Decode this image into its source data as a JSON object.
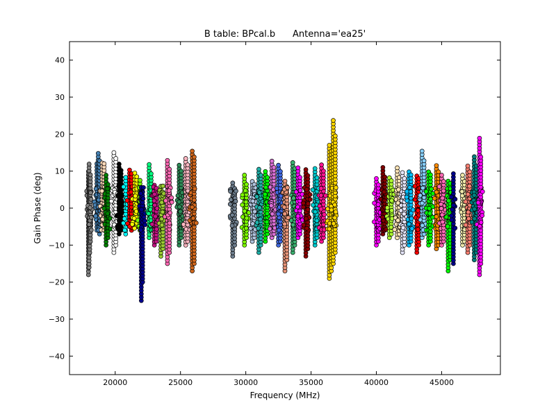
{
  "chart_data": {
    "type": "scatter",
    "title": "B table: BPcal.b      Antenna='ea25'",
    "xlabel": "Frequency (MHz)",
    "ylabel": "Gain Phase (deg)",
    "xlim": [
      16500,
      49500
    ],
    "ylim": [
      -45,
      45
    ],
    "x_ticks": [
      20000,
      25000,
      30000,
      35000,
      40000,
      45000
    ],
    "y_ticks": [
      40,
      30,
      20,
      10,
      0,
      -10,
      -20,
      -30,
      -40
    ],
    "x_tick_labels": [
      "20000",
      "25000",
      "30000",
      "35000",
      "40000",
      "45000"
    ],
    "y_tick_labels": [
      "40",
      "30",
      "20",
      "10",
      "0",
      "−10",
      "−20",
      "−30",
      "−40"
    ],
    "grid": false,
    "legend": "none",
    "marker": "circle",
    "series": [
      {
        "color": "#808080",
        "x": [
          17950,
          18000,
          18050,
          18100
        ],
        "ymin": [
          -18,
          -16,
          -12,
          -9
        ],
        "ymax": [
          10,
          12,
          8,
          9
        ]
      },
      {
        "color": "#4682b4",
        "x": [
          18600,
          18700,
          18800
        ],
        "ymin": [
          -6,
          -5,
          -7
        ],
        "ymax": [
          12,
          15,
          13
        ]
      },
      {
        "color": "#ffdab9",
        "x": [
          19000,
          19150
        ],
        "ymin": [
          -4,
          -6
        ],
        "ymax": [
          13,
          12
        ]
      },
      {
        "color": "#008000",
        "x": [
          19300,
          19450
        ],
        "ymin": [
          -10,
          -8
        ],
        "ymax": [
          9,
          7
        ]
      },
      {
        "color": "#ffffff",
        "x": [
          19900,
          20050
        ],
        "ymin": [
          -12,
          -10
        ],
        "ymax": [
          15,
          14
        ]
      },
      {
        "color": "#000000",
        "x": [
          20300,
          20450
        ],
        "ymin": [
          -7,
          -6
        ],
        "ymax": [
          12,
          11
        ]
      },
      {
        "color": "#00ffff",
        "x": [
          20800
        ],
        "ymin": [
          -7
        ],
        "ymax": [
          9
        ]
      },
      {
        "color": "#ff0000",
        "x": [
          21100,
          21250
        ],
        "ymin": [
          -5,
          -6
        ],
        "ymax": [
          11,
          10
        ]
      },
      {
        "color": "#ffff00",
        "x": [
          21500,
          21650
        ],
        "ymin": [
          -4,
          -5
        ],
        "ymax": [
          10,
          9
        ]
      },
      {
        "color": "#7cfc00",
        "x": [
          21900
        ],
        "ymin": [
          -6
        ],
        "ymax": [
          8
        ]
      },
      {
        "color": "#00008b",
        "x": [
          22000,
          22100
        ],
        "ymin": [
          -25,
          -20
        ],
        "ymax": [
          6,
          5
        ]
      },
      {
        "color": "#00ff7f",
        "x": [
          22600,
          22750
        ],
        "ymin": [
          -8,
          -6
        ],
        "ymax": [
          12,
          10
        ]
      },
      {
        "color": "#c71585",
        "x": [
          23000,
          23150
        ],
        "ymin": [
          -10,
          -9
        ],
        "ymax": [
          7,
          6
        ]
      },
      {
        "color": "#9acd32",
        "x": [
          23500,
          23650
        ],
        "ymin": [
          -13,
          -11
        ],
        "ymax": [
          6,
          5
        ]
      },
      {
        "color": "#ff69b4",
        "x": [
          24000,
          24150
        ],
        "ymin": [
          -15,
          -12
        ],
        "ymax": [
          13,
          11
        ]
      },
      {
        "color": "#2e8b57",
        "x": [
          24900,
          25050
        ],
        "ymin": [
          -10,
          -8
        ],
        "ymax": [
          12,
          10
        ]
      },
      {
        "color": "#ffb6c1",
        "x": [
          25400,
          25550
        ],
        "ymin": [
          -10,
          -9
        ],
        "ymax": [
          14,
          12
        ]
      },
      {
        "color": "#d2691e",
        "x": [
          25900,
          26050
        ],
        "ymin": [
          -17,
          -15
        ],
        "ymax": [
          16,
          14
        ]
      },
      {
        "color": "#708090",
        "x": [
          29000,
          29150
        ],
        "ymin": [
          -13,
          -10
        ],
        "ymax": [
          7,
          6
        ]
      },
      {
        "color": "#7fff00",
        "x": [
          29900,
          30050
        ],
        "ymin": [
          -10,
          -8
        ],
        "ymax": [
          9,
          7
        ]
      },
      {
        "color": "#b0c4de",
        "x": [
          30500,
          30650
        ],
        "ymin": [
          -9,
          -8
        ],
        "ymax": [
          8,
          7
        ]
      },
      {
        "color": "#20b2aa",
        "x": [
          31000,
          31150
        ],
        "ymin": [
          -12,
          -10
        ],
        "ymax": [
          11,
          9
        ]
      },
      {
        "color": "#00ff00",
        "x": [
          31500,
          31650
        ],
        "ymin": [
          -9,
          -7
        ],
        "ymax": [
          10,
          9
        ]
      },
      {
        "color": "#da70d6",
        "x": [
          32000,
          32150
        ],
        "ymin": [
          -8,
          -7
        ],
        "ymax": [
          13,
          11
        ]
      },
      {
        "color": "#4169e1",
        "x": [
          32500,
          32650
        ],
        "ymin": [
          -10,
          -9
        ],
        "ymax": [
          12,
          10
        ]
      },
      {
        "color": "#e9967a",
        "x": [
          33000,
          33150
        ],
        "ymin": [
          -17,
          -14
        ],
        "ymax": [
          8,
          6
        ]
      },
      {
        "color": "#3cb371",
        "x": [
          33600,
          33750
        ],
        "ymin": [
          -12,
          -10
        ],
        "ymax": [
          13,
          11
        ]
      },
      {
        "color": "#ff00ff",
        "x": [
          34000,
          34150
        ],
        "ymin": [
          -8,
          -7
        ],
        "ymax": [
          11,
          9
        ]
      },
      {
        "color": "#8b0000",
        "x": [
          34600,
          34750
        ],
        "ymin": [
          -13,
          -11
        ],
        "ymax": [
          11,
          9
        ]
      },
      {
        "color": "#00ced1",
        "x": [
          35300,
          35450
        ],
        "ymin": [
          -10,
          -8
        ],
        "ymax": [
          11,
          9
        ]
      },
      {
        "color": "#ff1493",
        "x": [
          35800,
          35950
        ],
        "ymin": [
          -9,
          -8
        ],
        "ymax": [
          12,
          10
        ]
      },
      {
        "color": "#ffd700",
        "x": [
          36400,
          36550,
          36700,
          36850
        ],
        "ymin": [
          -19,
          -17,
          -15,
          -12
        ],
        "ymax": [
          17,
          16,
          24,
          20
        ]
      },
      {
        "color": "#ff00ff",
        "x": [
          40000,
          40150
        ],
        "ymin": [
          -10,
          -9
        ],
        "ymax": [
          8,
          7
        ]
      },
      {
        "color": "#800000",
        "x": [
          40500,
          40650
        ],
        "ymin": [
          -7,
          -6
        ],
        "ymax": [
          11,
          9
        ]
      },
      {
        "color": "#adff2f",
        "x": [
          41000,
          41150
        ],
        "ymin": [
          -8,
          -7
        ],
        "ymax": [
          9,
          8
        ]
      },
      {
        "color": "#ffe4b5",
        "x": [
          41600,
          41750
        ],
        "ymin": [
          -8,
          -7
        ],
        "ymax": [
          11,
          9
        ]
      },
      {
        "color": "#e6e6fa",
        "x": [
          42000,
          42150
        ],
        "ymin": [
          -12,
          -10
        ],
        "ymax": [
          10,
          8
        ]
      },
      {
        "color": "#00bfff",
        "x": [
          42500,
          42650
        ],
        "ymin": [
          -10,
          -9
        ],
        "ymax": [
          10,
          9
        ]
      },
      {
        "color": "#ff0000",
        "x": [
          43100,
          43250
        ],
        "ymin": [
          -12,
          -10
        ],
        "ymax": [
          9,
          8
        ]
      },
      {
        "color": "#87cefa",
        "x": [
          43500,
          43650
        ],
        "ymin": [
          -8,
          -7
        ],
        "ymax": [
          16,
          13
        ]
      },
      {
        "color": "#00ff00",
        "x": [
          44000,
          44150
        ],
        "ymin": [
          -10,
          -9
        ],
        "ymax": [
          10,
          9
        ]
      },
      {
        "color": "#ff8c00",
        "x": [
          44600,
          44750
        ],
        "ymin": [
          -11,
          -10
        ],
        "ymax": [
          12,
          10
        ]
      },
      {
        "color": "#ff69b4",
        "x": [
          45000,
          45150
        ],
        "ymin": [
          -10,
          -9
        ],
        "ymax": [
          9,
          8
        ]
      },
      {
        "color": "#00ff00",
        "x": [
          45500,
          45650
        ],
        "ymin": [
          -17,
          -14
        ],
        "ymax": [
          8,
          7
        ]
      },
      {
        "color": "#00008b",
        "x": [
          45900
        ],
        "ymin": [
          -15
        ],
        "ymax": [
          10
        ]
      },
      {
        "color": "#eee8aa",
        "x": [
          46600,
          46750
        ],
        "ymin": [
          -10,
          -9
        ],
        "ymax": [
          9,
          8
        ]
      },
      {
        "color": "#fa8072",
        "x": [
          47000,
          47150
        ],
        "ymin": [
          -12,
          -10
        ],
        "ymax": [
          12,
          10
        ]
      },
      {
        "color": "#008080",
        "x": [
          47500,
          47650
        ],
        "ymin": [
          -14,
          -12
        ],
        "ymax": [
          14,
          12
        ]
      },
      {
        "color": "#ff00ff",
        "x": [
          47900,
          48000
        ],
        "ymin": [
          -18,
          -15
        ],
        "ymax": [
          19,
          14
        ]
      }
    ]
  }
}
